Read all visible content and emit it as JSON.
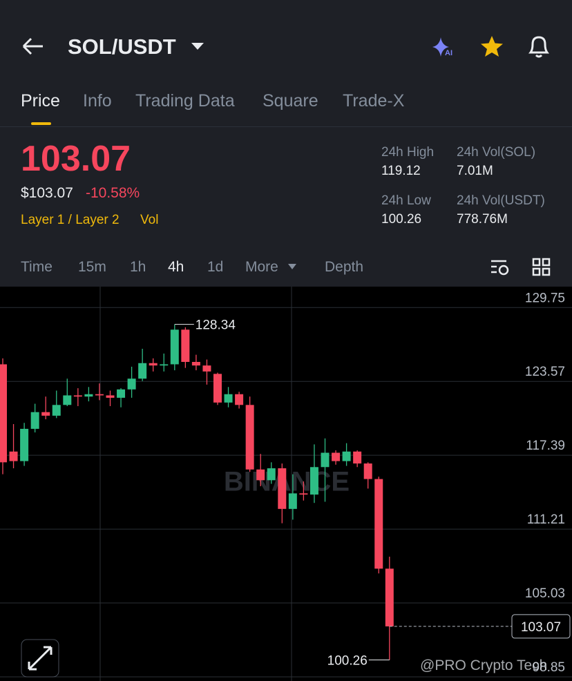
{
  "header": {
    "pair": "SOL/USDT",
    "ai_badge": "AI"
  },
  "tabs": [
    "Price",
    "Info",
    "Trading Data",
    "Square",
    "Trade-X"
  ],
  "ticker": {
    "price": "103.07",
    "usd_price": "$103.07",
    "change": "-10.58%",
    "tag_layer": "Layer 1 / Layer 2",
    "tag_vol": "Vol"
  },
  "stats": [
    {
      "label": "24h High",
      "value": "119.12"
    },
    {
      "label": "24h Vol(SOL)",
      "value": "7.01M"
    },
    {
      "label": "24h Low",
      "value": "100.26"
    },
    {
      "label": "24h Vol(USDT)",
      "value": "778.76M"
    }
  ],
  "intervals": [
    "Time",
    "15m",
    "1h",
    "4h",
    "1d",
    "More",
    "Depth"
  ],
  "chart_data": {
    "type": "candlestick",
    "up_color": "#2ebd85",
    "down_color": "#f6465d",
    "open": [
      125.0,
      117.7,
      116.9,
      119.6,
      121.0,
      120.7,
      121.6,
      122.4,
      122.3,
      122.5,
      122.4,
      122.2,
      122.9,
      123.8,
      125.1,
      124.9,
      125.0,
      127.9,
      125.2,
      124.9,
      124.2,
      121.8,
      122.5,
      121.6,
      116.2,
      115.3,
      116.3,
      112.9,
      114.2,
      114.1,
      116.4,
      117.6,
      116.9,
      117.7,
      116.7,
      115.4,
      107.9
    ],
    "high": [
      125.5,
      120.0,
      120.1,
      121.7,
      122.3,
      122.8,
      123.8,
      123.0,
      123.1,
      123.4,
      122.8,
      123.0,
      124.8,
      126.3,
      125.5,
      125.9,
      128.34,
      128.1,
      125.8,
      125.4,
      124.3,
      123.1,
      122.7,
      122.3,
      117.5,
      116.8,
      116.7,
      115.8,
      115.2,
      118.3,
      118.8,
      117.8,
      118.4,
      117.8,
      116.8,
      115.6,
      108.9
    ],
    "low": [
      115.8,
      116.3,
      116.5,
      119.3,
      120.4,
      120.5,
      121.5,
      121.5,
      121.9,
      122.0,
      121.5,
      121.4,
      122.2,
      123.6,
      124.4,
      124.4,
      124.5,
      124.7,
      124.5,
      123.3,
      121.6,
      121.4,
      121.3,
      116.0,
      114.8,
      115.0,
      111.7,
      112.0,
      113.6,
      113.4,
      113.5,
      116.6,
      116.5,
      116.4,
      114.6,
      107.5,
      100.26
    ],
    "close": [
      116.8,
      116.9,
      119.6,
      121.0,
      120.7,
      121.6,
      122.4,
      122.3,
      122.5,
      122.4,
      122.2,
      122.9,
      123.8,
      125.1,
      124.9,
      125.0,
      127.9,
      125.2,
      124.9,
      124.4,
      121.8,
      122.5,
      121.6,
      116.2,
      115.3,
      116.3,
      112.9,
      114.2,
      114.1,
      116.4,
      117.6,
      116.9,
      117.7,
      116.7,
      115.4,
      107.9,
      103.07
    ],
    "ylim": [
      98.5,
      131.5
    ],
    "yticks": [
      129.75,
      123.57,
      117.39,
      111.21,
      105.03,
      98.85
    ],
    "grid": true,
    "max_label": 128.34,
    "min_label": 100.26,
    "last_price": 103.07,
    "watermark": "BINANCE",
    "credit": "@PRO Crypto Tech"
  }
}
